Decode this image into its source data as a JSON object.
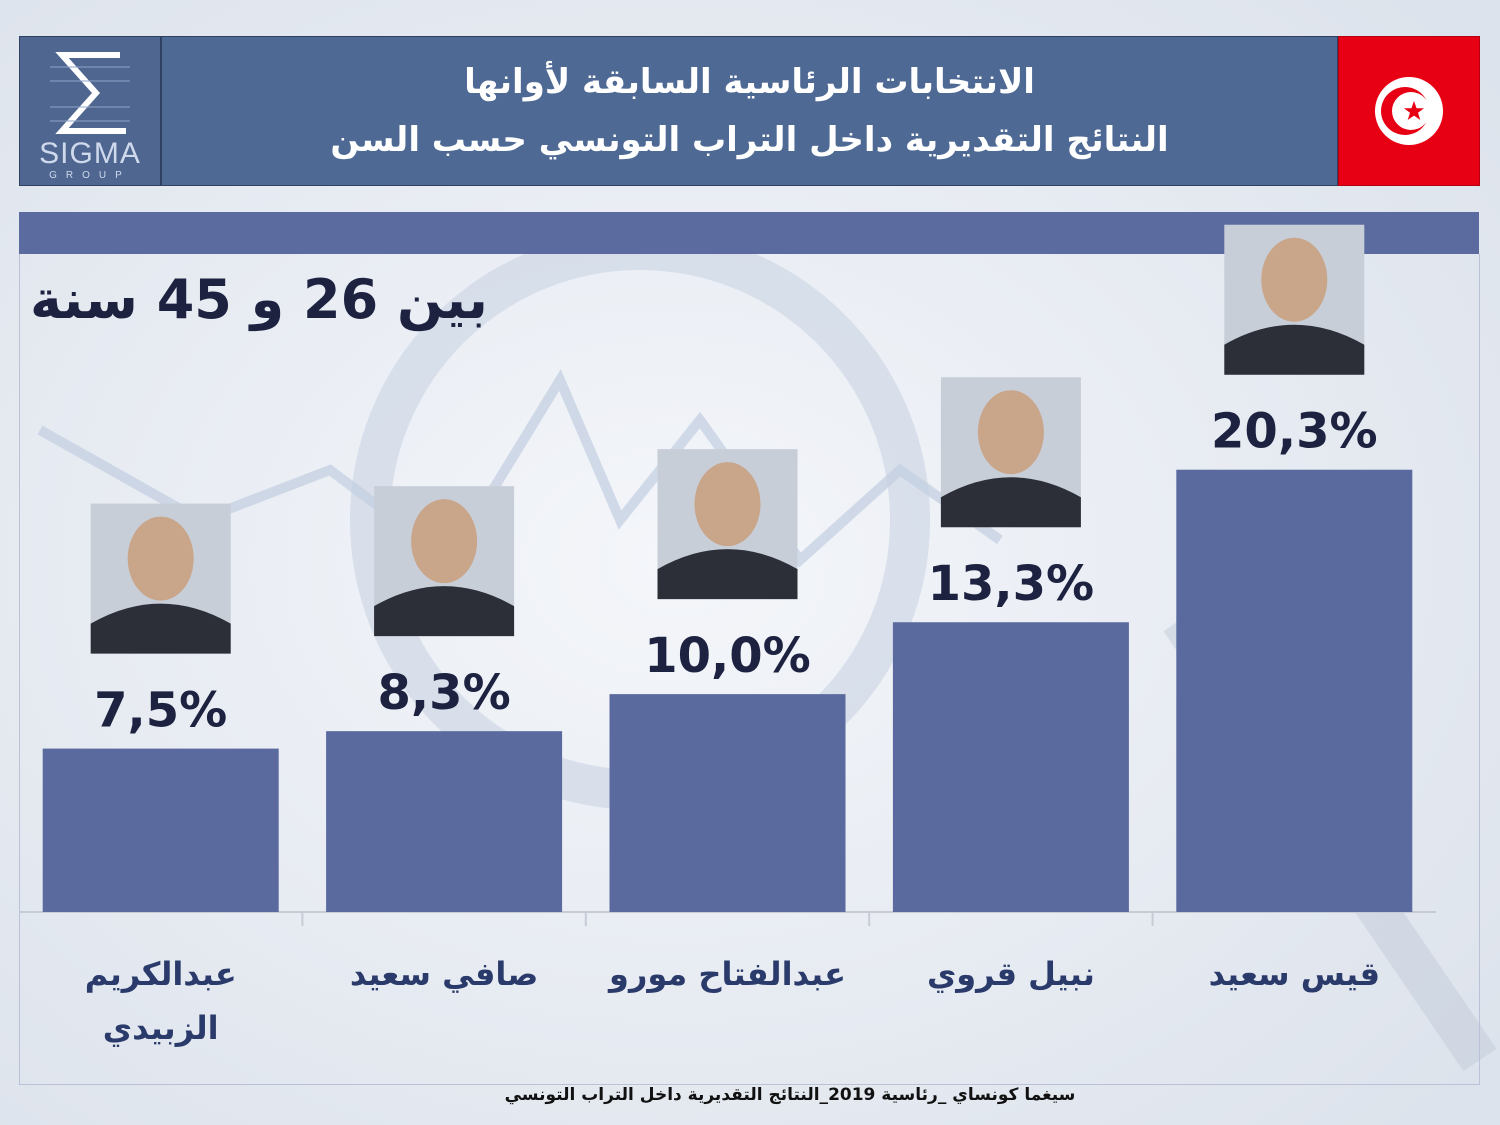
{
  "header": {
    "logo_text": "SIGMA",
    "logo_sub": "GROUP",
    "title_line1": "الانتخابات الرئاسية السابقة لأوانها",
    "title_line2": "النتائج التقديرية داخل التراب التونسي حسب السن"
  },
  "subtitle": "بين 26 و 45 سنة",
  "footer": "سيغما كونساي _رئاسية 2019_النتائج التقديرية داخل التراب التونسي",
  "colors": {
    "bar": "#5a6a9e",
    "label": "#1c2240",
    "header_bg": "#4e6994",
    "flag_red": "#e70013"
  },
  "chart_data": {
    "type": "bar",
    "categories": [
      "عبدالكريم الزبيدي",
      "صافي سعيد",
      "عبدالفتاح مورو",
      "نبيل قروي",
      "قيس سعيد"
    ],
    "values": [
      7.5,
      8.3,
      10.0,
      13.3,
      20.3
    ],
    "value_labels": [
      "7,5%",
      "8,3%",
      "10,0%",
      "13,3%",
      "20,3%"
    ],
    "unit": "%",
    "title": "بين 26 و 45 سنة",
    "ylim": [
      0,
      23.5
    ],
    "grid": false,
    "legend": "none"
  }
}
